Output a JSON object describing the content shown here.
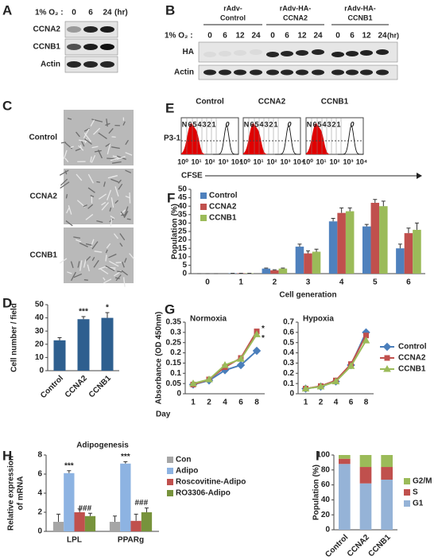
{
  "blot_a": {
    "panel": "A",
    "condition": "1% O₂ :",
    "times": [
      "0",
      "6",
      "24"
    ],
    "unit": "(hr)",
    "rows": [
      "CCNA2",
      "CCNB1",
      "Actin"
    ]
  },
  "blot_b": {
    "panel": "B",
    "groups": [
      [
        "rAdv-",
        "Control"
      ],
      [
        "rAdv-HA-",
        "CCNA2"
      ],
      [
        "rAdv-HA-",
        "CCNB1"
      ]
    ],
    "condition": "1% O₂ :",
    "times": [
      "0",
      "6",
      "12",
      "24"
    ],
    "unit": "(hr)",
    "rows": [
      "HA",
      "Actin"
    ]
  },
  "micrographs": {
    "panel": "C",
    "rows": [
      "Control",
      "CCNA2",
      "CCNB1"
    ]
  },
  "flow": {
    "panel": "E",
    "titles": [
      "Control",
      "CCNA2",
      "CCNB1"
    ],
    "gate": "P3-1",
    "generations": [
      "N",
      "6",
      "5",
      "4",
      "3",
      "2",
      "1",
      "0"
    ],
    "x_ticks": [
      "10⁰",
      "10¹",
      "10²",
      "10³",
      "10⁴"
    ],
    "xlabel": "CFSE"
  },
  "chart_data": [
    {
      "panel": "D",
      "type": "bar",
      "ylabel": "Cell number / field",
      "categories": [
        "Control",
        "CCNA2",
        "CCNB1"
      ],
      "values": [
        23,
        39,
        40
      ],
      "errors": [
        2,
        2,
        4
      ],
      "color": "#2e5f8f",
      "ylim": [
        0,
        50
      ],
      "yticks": [
        0,
        10,
        20,
        30,
        40,
        50
      ],
      "annotations": [
        {
          "category": "CCNA2",
          "text": "***"
        },
        {
          "category": "CCNB1",
          "text": "*"
        }
      ]
    },
    {
      "panel": "F",
      "type": "bar",
      "ylabel": "Population (%)",
      "xlabel": "Cell generation",
      "categories": [
        "0",
        "1",
        "2",
        "3",
        "4",
        "5",
        "6"
      ],
      "ylim": [
        0,
        50
      ],
      "yticks": [
        0,
        5,
        10,
        15,
        20,
        25,
        30,
        35,
        40,
        45,
        50
      ],
      "legend": "upper left",
      "series": [
        {
          "name": "Control",
          "color": "#4f81bd",
          "values": [
            0,
            0.2,
            3,
            16,
            31,
            28,
            15
          ],
          "errors": [
            0,
            0,
            0.3,
            1.5,
            1.8,
            1.2,
            2.5
          ]
        },
        {
          "name": "CCNA2",
          "color": "#c0504d",
          "values": [
            0,
            0.2,
            2,
            12,
            36,
            42,
            24
          ],
          "errors": [
            0,
            0,
            0.3,
            1.5,
            3,
            2,
            3
          ]
        },
        {
          "name": "CCNB1",
          "color": "#9bbb59",
          "values": [
            0,
            0.2,
            3,
            13,
            37,
            40,
            26
          ],
          "errors": [
            0,
            0,
            0.3,
            1.5,
            2,
            3,
            4
          ]
        }
      ]
    },
    {
      "panel": "G",
      "type": "line",
      "title": "Normoxia",
      "ylabel": "Absorbance (OD 450nm)",
      "xlabel": "Day",
      "categories": [
        "1",
        "2",
        "4",
        "6",
        "8"
      ],
      "ylim": [
        0,
        0.35
      ],
      "yticks": [
        0,
        0.05,
        0.1,
        0.15,
        0.2,
        0.25,
        0.3,
        0.35
      ],
      "series": [
        {
          "name": "Control",
          "color": "#4a7ebb",
          "marker": "diamond",
          "values": [
            0.045,
            0.065,
            0.115,
            0.14,
            0.21
          ]
        },
        {
          "name": "CCNA2",
          "color": "#c0504d",
          "marker": "square",
          "values": [
            0.045,
            0.07,
            0.13,
            0.175,
            0.305
          ]
        },
        {
          "name": "CCNB1",
          "color": "#9bbb59",
          "marker": "triangle",
          "values": [
            0.05,
            0.07,
            0.14,
            0.17,
            0.29
          ]
        }
      ],
      "annotations": [
        {
          "category": "8",
          "series": "CCNA2",
          "text": "*"
        },
        {
          "category": "8",
          "series": "CCNB1",
          "text": "*"
        }
      ]
    },
    {
      "type": "line",
      "title": "Hypoxia",
      "categories": [
        "1",
        "2",
        "4",
        "6",
        "8"
      ],
      "ylim": [
        0,
        0.7
      ],
      "yticks": [
        0,
        0.1,
        0.2,
        0.3,
        0.4,
        0.5,
        0.6,
        0.7
      ],
      "legend": "right",
      "series": [
        {
          "name": "Control",
          "color": "#4a7ebb",
          "marker": "diamond",
          "values": [
            0.05,
            0.07,
            0.12,
            0.28,
            0.6
          ]
        },
        {
          "name": "CCNA2",
          "color": "#c0504d",
          "marker": "square",
          "values": [
            0.05,
            0.075,
            0.13,
            0.29,
            0.57
          ]
        },
        {
          "name": "CCNB1",
          "color": "#9bbb59",
          "marker": "triangle",
          "values": [
            0.05,
            0.07,
            0.12,
            0.27,
            0.52
          ]
        }
      ]
    },
    {
      "panel": "H",
      "type": "bar",
      "title": "Adipogenesis",
      "ylabel": [
        "Relative expression",
        "of mRNA"
      ],
      "categories": [
        "LPL",
        "PPARg"
      ],
      "ylim": [
        0,
        8
      ],
      "yticks": [
        0,
        2,
        4,
        6,
        8
      ],
      "legend": "upper right",
      "series": [
        {
          "name": "Con",
          "color": "#a6a6a6",
          "values": [
            1,
            1
          ],
          "errors": [
            0.8,
            0.6
          ]
        },
        {
          "name": "Adipo",
          "color": "#8db3e2",
          "values": [
            6.1,
            7.1
          ],
          "errors": [
            0.25,
            0.2
          ]
        },
        {
          "name": "Roscovitine-Adipo",
          "color": "#c0504d",
          "values": [
            2.0,
            1.1
          ],
          "errors": [
            0.35,
            0.7
          ]
        },
        {
          "name": "RO3306-Adipo",
          "color": "#77933c",
          "values": [
            1.6,
            2.0
          ],
          "errors": [
            0.3,
            0.45
          ]
        }
      ],
      "annotations": [
        {
          "category": "LPL",
          "series": "Adipo",
          "text": "***"
        },
        {
          "category": "PPARg",
          "series": "Adipo",
          "text": "***"
        },
        {
          "category": "LPL",
          "series": "RO3306-Adipo",
          "text": "###"
        },
        {
          "category": "PPARg",
          "series": "RO3306-Adipo",
          "text": "###"
        }
      ]
    },
    {
      "panel": "I",
      "type": "bar",
      "stacked": true,
      "ylabel": "Population (%)",
      "categories": [
        "Control",
        "CCNA2",
        "CCNB1"
      ],
      "ylim": [
        0,
        100
      ],
      "yticks": [
        0,
        20,
        40,
        60,
        80,
        100
      ],
      "legend": "right",
      "series": [
        {
          "name": "G1",
          "color": "#95b3d7",
          "values": [
            88,
            62,
            67
          ]
        },
        {
          "name": "S",
          "color": "#c0504d",
          "values": [
            7,
            22,
            17
          ]
        },
        {
          "name": "G2/M",
          "color": "#9bbb59",
          "values": [
            5,
            16,
            16
          ]
        }
      ]
    }
  ]
}
